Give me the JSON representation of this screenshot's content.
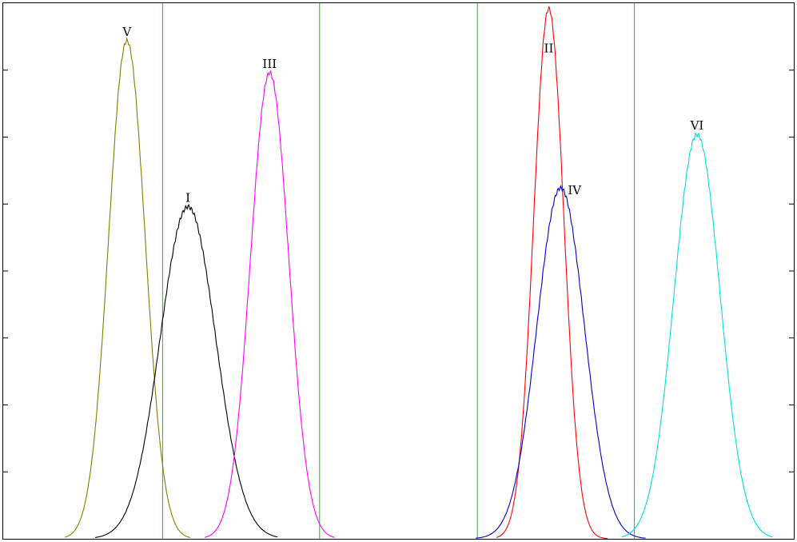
{
  "chart_data": {
    "type": "line",
    "title": "",
    "xlabel": "",
    "ylabel": "",
    "xlim": [
      0,
      997
    ],
    "ylim": [
      0,
      1
    ],
    "grid": false,
    "vertical_lines": [
      {
        "x": 201,
        "color": "#00cc00"
      },
      {
        "x": 399,
        "color": "#00cc00"
      },
      {
        "x": 598,
        "color": "#00cc00"
      },
      {
        "x": 796,
        "color": "#00cc00"
      }
    ],
    "y_ticks": [
      0.125,
      0.25,
      0.375,
      0.5,
      0.625,
      0.75,
      0.875
    ],
    "series": [
      {
        "name": "V",
        "mean": 156,
        "sigma": 23,
        "peak": 0.93,
        "range": [
          78,
          236
        ],
        "color": "#808000"
      },
      {
        "name": "I",
        "mean": 233,
        "sigma": 35,
        "peak": 0.62,
        "range": [
          116,
          346
        ],
        "color": "#000000"
      },
      {
        "name": "III",
        "mean": 336,
        "sigma": 24,
        "peak": 0.87,
        "range": [
          254,
          418
        ],
        "color": "#ff00ff"
      },
      {
        "name": "II",
        "mean": 688,
        "sigma": 19,
        "peak": 0.99,
        "range": [
          622,
          762
        ],
        "color": "#ff0000"
      },
      {
        "name": "IV",
        "mean": 703,
        "sigma": 30,
        "peak": 0.655,
        "range": [
          596,
          810
        ],
        "color": "#0000cc"
      },
      {
        "name": "VI",
        "mean": 875,
        "sigma": 29,
        "peak": 0.755,
        "range": [
          780,
          970
        ],
        "color": "#00e0e0"
      }
    ]
  }
}
